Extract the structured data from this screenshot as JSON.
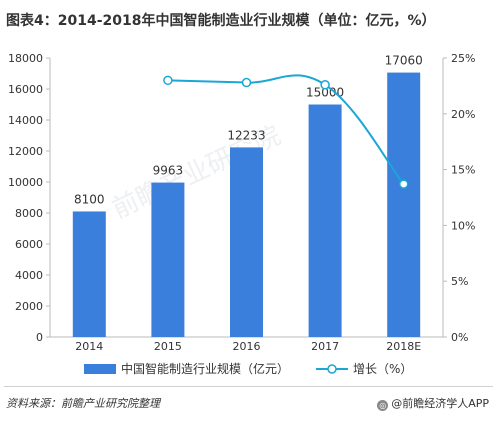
{
  "title": "图表4：2014-2018年中国智能制造业行业规模（单位：亿元，%）",
  "source": "资料来源：前瞻产业研究院整理",
  "brand": "@前瞻经济学人APP",
  "watermark": "前瞻产业研究院",
  "colors": {
    "bar": "#3a7fdb",
    "line": "#1aa6d6",
    "axis_text": "#333333",
    "grid": "#e6e6e6"
  },
  "chart_data": {
    "type": "bar",
    "categories": [
      "2014",
      "2015",
      "2016",
      "2017",
      "2018E"
    ],
    "series": [
      {
        "name": "中国智能制造行业规模（亿元）",
        "type": "bar",
        "axis": "left",
        "values": [
          8100,
          9963,
          12233,
          15000,
          17060
        ],
        "labels": [
          "8100",
          "9963",
          "12233",
          "15000",
          "17060"
        ]
      },
      {
        "name": "增长（%）",
        "type": "line",
        "axis": "right",
        "values": [
          null,
          23.0,
          22.8,
          22.6,
          13.7
        ]
      }
    ],
    "ylim_left": [
      0,
      18000
    ],
    "ylim_right": [
      0,
      25
    ],
    "yticks_left": [
      "0",
      "2000",
      "4000",
      "6000",
      "8000",
      "10000",
      "12000",
      "14000",
      "16000",
      "18000"
    ],
    "yticks_right": [
      "0%",
      "5%",
      "10%",
      "15%",
      "20%",
      "25%"
    ],
    "legend_position": "bottom",
    "grid": false
  }
}
